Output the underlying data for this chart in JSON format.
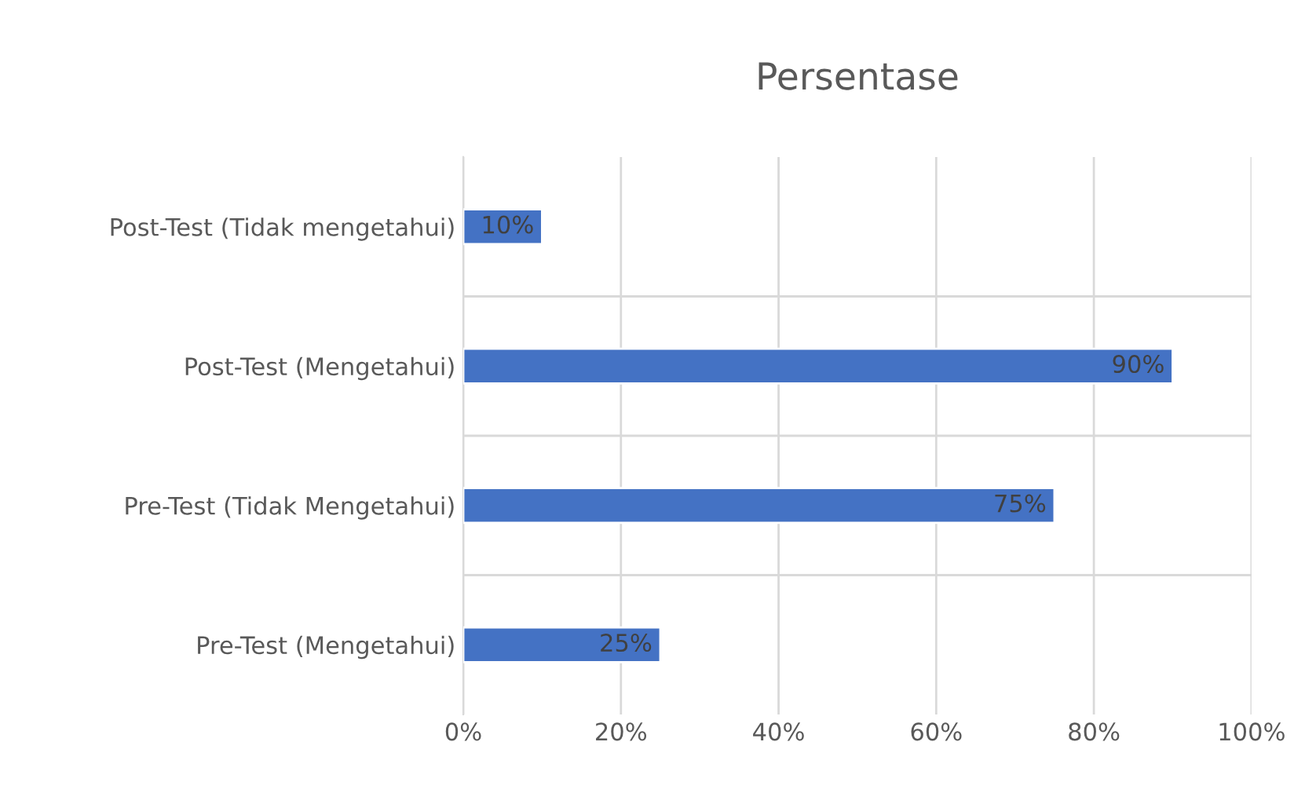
{
  "chart_data": {
    "type": "bar",
    "orientation": "horizontal",
    "title": "Persentase",
    "categories": [
      "Post-Test (Tidak mengetahui)",
      "Post-Test (Mengetahui)",
      "Pre-Test (Tidak Mengetahui)",
      "Pre-Test (Mengetahui)"
    ],
    "values": [
      10,
      90,
      75,
      25
    ],
    "value_labels": [
      "10%",
      "90%",
      "75%",
      "25%"
    ],
    "color": "#4472c4",
    "xlim": [
      0,
      100
    ],
    "xticks": [
      {
        "value": 0,
        "label": "0%"
      },
      {
        "value": 20,
        "label": "20%"
      },
      {
        "value": 40,
        "label": "40%"
      },
      {
        "value": 60,
        "label": "60%"
      },
      {
        "value": 80,
        "label": "80%"
      },
      {
        "value": 100,
        "label": "100%"
      }
    ],
    "grid": "x",
    "legend": false
  }
}
